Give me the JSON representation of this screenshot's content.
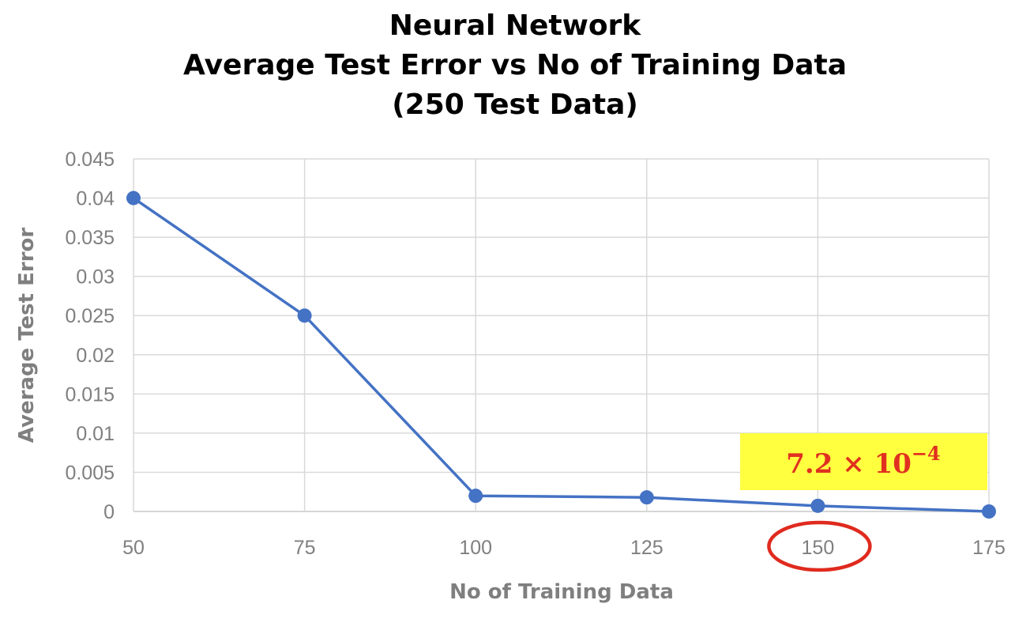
{
  "chart_data": {
    "type": "line",
    "title_lines": [
      "Neural Network",
      "Average Test Error vs No of Training Data",
      "(250 Test Data)"
    ],
    "xlabel": "No of Training Data",
    "ylabel": "Average Test Error",
    "x": [
      50,
      75,
      100,
      125,
      150,
      175
    ],
    "x_tick_labels": [
      "50",
      "75",
      "100",
      "125",
      "150",
      "175"
    ],
    "series": [
      {
        "values": [
          0.04,
          0.025,
          0.002,
          0.0018,
          0.00072,
          0.0
        ]
      }
    ],
    "xlim": [
      50,
      175
    ],
    "ylim": [
      0,
      0.045
    ],
    "y_ticks": [
      0,
      0.005,
      0.01,
      0.015,
      0.02,
      0.025,
      0.03,
      0.035,
      0.04,
      0.045
    ],
    "y_tick_labels": [
      "0",
      "0.005",
      "0.01",
      "0.015",
      "0.02",
      "0.025",
      "0.03",
      "0.035",
      "0.04",
      "0.045"
    ],
    "grid": true,
    "legend": "none",
    "line_color": "#4472c4",
    "annotations": [
      {
        "text_base": "7.2 × 10",
        "text_exponent": "−4",
        "highlight_color": "#ffff40",
        "text_color": "#e03020",
        "points_to_x": 150,
        "circle_color": "#e02a1e"
      }
    ]
  }
}
